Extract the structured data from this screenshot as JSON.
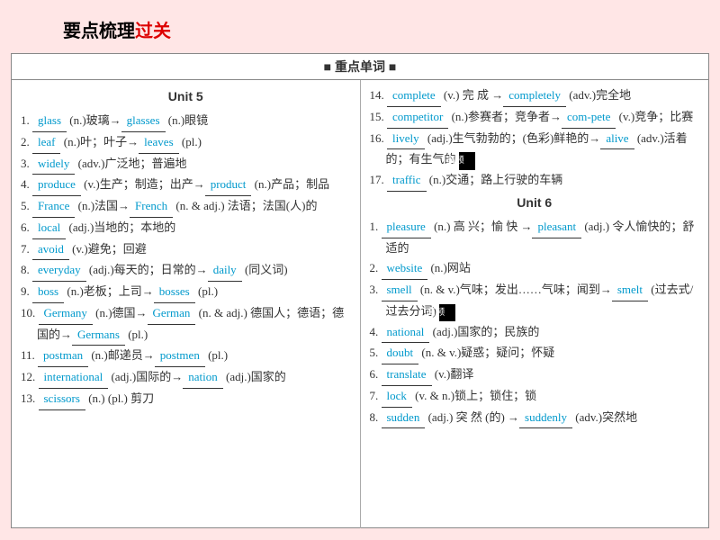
{
  "title": {
    "black": "要点梳理",
    "red": "过关"
  },
  "header": "■ 重点单词 ■",
  "unit5": "Unit 5",
  "unit6": "Unit 6",
  "left": [
    {
      "n": "1.",
      "parts": [
        {
          "b": "glass"
        },
        {
          "t": " (n.)玻璃→"
        },
        {
          "b": "glasses"
        },
        {
          "t": " (n.)眼镜"
        }
      ]
    },
    {
      "n": "2.",
      "parts": [
        {
          "b": "leaf"
        },
        {
          "t": " (n.)叶；叶子→"
        },
        {
          "b": "leaves"
        },
        {
          "t": " (pl.)"
        }
      ]
    },
    {
      "n": "3.",
      "parts": [
        {
          "b": "widely"
        },
        {
          "t": " (adv.)广泛地；普遍地"
        }
      ]
    },
    {
      "n": "4.",
      "parts": [
        {
          "b": "produce"
        },
        {
          "t": " (v.)生产；制造；出产→"
        },
        {
          "b": "product"
        },
        {
          "t": " (n.)产品；制品"
        }
      ]
    },
    {
      "n": "5.",
      "parts": [
        {
          "b": "France"
        },
        {
          "t": " (n.)法国→"
        },
        {
          "b": "French"
        },
        {
          "t": " (n. & adj.) 法语；法国(人)的"
        }
      ]
    },
    {
      "n": "6.",
      "parts": [
        {
          "b": "local"
        },
        {
          "t": " (adj.)当地的；本地的"
        }
      ]
    },
    {
      "n": "7.",
      "parts": [
        {
          "b": "avoid"
        },
        {
          "t": " (v.)避免；回避"
        }
      ]
    },
    {
      "n": "8.",
      "parts": [
        {
          "b": "everyday"
        },
        {
          "t": " (adj.)每天的；日常的→"
        },
        {
          "b": "daily"
        },
        {
          "t": " (同义词)"
        }
      ]
    },
    {
      "n": "9.",
      "parts": [
        {
          "b": "boss"
        },
        {
          "t": " (n.)老板；上司→"
        },
        {
          "b": "bosses"
        },
        {
          "t": " (pl.)"
        }
      ]
    },
    {
      "n": "10.",
      "parts": [
        {
          "b": "Germany"
        },
        {
          "t": " (n.)德国→"
        },
        {
          "b": "German"
        },
        {
          "t": " (n. & adj.) 德国人；德语；德国的→"
        },
        {
          "b": "Germans"
        },
        {
          "t": " (pl.)"
        }
      ]
    },
    {
      "n": "11.",
      "parts": [
        {
          "b": "postman"
        },
        {
          "t": " (n.)邮递员→"
        },
        {
          "b": "postmen"
        },
        {
          "t": " (pl.)"
        }
      ]
    },
    {
      "n": "12.",
      "parts": [
        {
          "b": "international"
        },
        {
          "t": " (adj.)国际的→"
        },
        {
          "b": "nation"
        },
        {
          "t": " (adj.)国家的"
        }
      ]
    },
    {
      "n": "13.",
      "parts": [
        {
          "b": "scissors"
        },
        {
          "t": " (n.) (pl.) 剪刀"
        }
      ]
    }
  ],
  "right": [
    {
      "n": "14.",
      "parts": [
        {
          "b": "complete"
        },
        {
          "t": " (v.) 完 成 →"
        },
        {
          "b": "completely"
        },
        {
          "t": " (adv.)完全地"
        }
      ]
    },
    {
      "n": "15.",
      "parts": [
        {
          "b": "competitor"
        },
        {
          "t": " (n.)参赛者；竞争者→"
        },
        {
          "b": "com-pete"
        },
        {
          "t": " (v.)竞争；比赛"
        }
      ]
    },
    {
      "n": "16.",
      "parts": [
        {
          "b": "lively"
        },
        {
          "t": " (adj.)生气勃勃的；(色彩)鲜艳的→"
        },
        {
          "b": "alive"
        },
        {
          "t": " (adv.)活着的；有生气的 "
        },
        {
          "tag": "高频"
        }
      ]
    },
    {
      "n": "17.",
      "parts": [
        {
          "b": "traffic"
        },
        {
          "t": " (n.)交通；路上行驶的车辆"
        }
      ]
    }
  ],
  "right2": [
    {
      "n": "1.",
      "parts": [
        {
          "b": "pleasure"
        },
        {
          "t": " (n.) 高 兴；愉 快 →"
        },
        {
          "b": "pleasant"
        },
        {
          "t": " (adj.) 令人愉快的；舒适的"
        }
      ]
    },
    {
      "n": "2.",
      "parts": [
        {
          "b": "website"
        },
        {
          "t": " (n.)网站"
        }
      ]
    },
    {
      "n": "3.",
      "parts": [
        {
          "b": "smell"
        },
        {
          "t": " (n. & v.)气味；发出……气味；闻到→"
        },
        {
          "b": "smelt"
        },
        {
          "t": " (过去式/过去分词) "
        },
        {
          "tag": "高频"
        }
      ]
    },
    {
      "n": "4.",
      "parts": [
        {
          "b": "national"
        },
        {
          "t": " (adj.)国家的；民族的"
        }
      ]
    },
    {
      "n": "5.",
      "parts": [
        {
          "b": "doubt"
        },
        {
          "t": " (n. & v.)疑惑；疑问；怀疑"
        }
      ]
    },
    {
      "n": "6.",
      "parts": [
        {
          "b": "translate"
        },
        {
          "t": " (v.)翻译"
        }
      ]
    },
    {
      "n": "7.",
      "parts": [
        {
          "b": "lock"
        },
        {
          "t": " (v. & n.)锁上；锁住；锁"
        }
      ]
    },
    {
      "n": "8.",
      "parts": [
        {
          "b": "sudden"
        },
        {
          "t": " (adj.) 突 然 (的) →"
        },
        {
          "b": "suddenly"
        },
        {
          "t": " (adv.)突然地"
        }
      ]
    }
  ]
}
